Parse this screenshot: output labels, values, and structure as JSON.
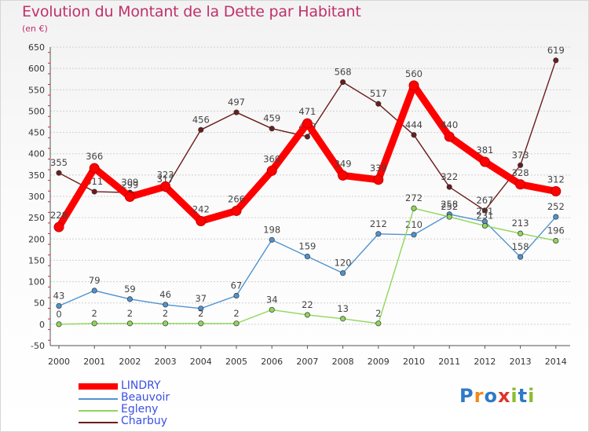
{
  "title": "Evolution du Montant de la Dette par Habitant",
  "subtitle": "(en €)",
  "logo_text": "Proxiti",
  "chart_data": {
    "type": "line",
    "title": "Evolution du Montant de la Dette par Habitant",
    "ylabel": "(en €)",
    "xlabel": "",
    "ylim": [
      -50,
      650
    ],
    "y_ticks": [
      -50,
      0,
      50,
      100,
      150,
      200,
      250,
      300,
      350,
      400,
      450,
      500,
      550,
      600,
      650
    ],
    "categories": [
      "2000",
      "2001",
      "2002",
      "2003",
      "2004",
      "2005",
      "2006",
      "2007",
      "2008",
      "2009",
      "2010",
      "2011",
      "2012",
      "2013",
      "2014"
    ],
    "grid": true,
    "legend_position": "bottom-left",
    "series": [
      {
        "name": "Charbuy",
        "color": "#6b1c1c",
        "values": [
          355,
          311,
          309,
          317,
          456,
          497,
          459,
          440,
          568,
          517,
          444,
          322,
          267,
          373,
          619
        ]
      },
      {
        "name": "Beauvoir",
        "color": "#4f93cf",
        "values": [
          43,
          79,
          59,
          46,
          37,
          67,
          198,
          159,
          120,
          212,
          210,
          258,
          241,
          158,
          252
        ]
      },
      {
        "name": "Egleny",
        "color": "#8fd65a",
        "values": [
          0,
          2,
          2,
          2,
          2,
          2,
          34,
          22,
          13,
          2,
          272,
          252,
          231,
          213,
          196
        ]
      },
      {
        "name": "LINDRY",
        "color": "#ff0000",
        "values": [
          228,
          366,
          299,
          323,
          242,
          266,
          360,
          471,
          349,
          339,
          560,
          440,
          381,
          328,
          312
        ]
      }
    ],
    "legend": [
      "LINDRY",
      "Beauvoir",
      "Egleny",
      "Charbuy"
    ]
  }
}
